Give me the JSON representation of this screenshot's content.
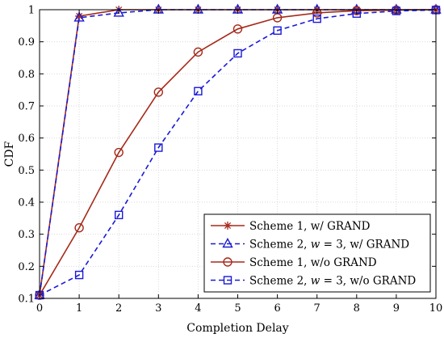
{
  "chart_data": {
    "type": "line",
    "xlabel": "Completion Delay",
    "ylabel": "CDF",
    "xlim": [
      0,
      10
    ],
    "ylim": [
      0.1,
      1
    ],
    "x_ticks": [
      "0",
      "1",
      "2",
      "3",
      "4",
      "5",
      "6",
      "7",
      "8",
      "9",
      "10"
    ],
    "y_ticks": [
      "0.1",
      "0.2",
      "0.3",
      "0.4",
      "0.5",
      "0.6",
      "0.7",
      "0.8",
      "0.9",
      "1"
    ],
    "x": [
      0,
      1,
      2,
      3,
      4,
      5,
      6,
      7,
      8,
      9,
      10
    ],
    "grid": true,
    "legend_position": "bottom-right",
    "series": [
      {
        "name": "Scheme 1, w/ GRAND",
        "color": "#a52a1a",
        "line": "solid",
        "marker": "asterisk",
        "values": [
          0.11,
          0.98,
          1.0,
          1.0,
          1.0,
          1.0,
          1.0,
          1.0,
          1.0,
          1.0,
          1.0
        ]
      },
      {
        "name": "Scheme 2, w = 3, w/ GRAND",
        "color": "#1a1ad6",
        "line": "dashed",
        "marker": "triangle",
        "values": [
          0.11,
          0.975,
          0.99,
          1.0,
          1.0,
          1.0,
          1.0,
          1.0,
          1.0,
          1.0,
          1.0
        ]
      },
      {
        "name": "Scheme 1, w/o GRAND",
        "color": "#a52a1a",
        "line": "solid",
        "marker": "circle",
        "values": [
          0.11,
          0.32,
          0.555,
          0.743,
          0.868,
          0.94,
          0.975,
          0.99,
          0.997,
          0.999,
          1.0
        ]
      },
      {
        "name": "Scheme 2, w = 3, w/o GRAND",
        "color": "#1a1ad6",
        "line": "dashed",
        "marker": "square",
        "values": [
          0.11,
          0.173,
          0.36,
          0.57,
          0.746,
          0.864,
          0.935,
          0.972,
          0.988,
          0.996,
          0.999
        ]
      }
    ],
    "legend_entries": [
      {
        "pre": "Scheme 1, w/ GRAND",
        "var": "",
        "post": ""
      },
      {
        "pre": "Scheme 2, ",
        "var": "w",
        "post": " = 3, w/ GRAND"
      },
      {
        "pre": "Scheme 1, w/o GRAND",
        "var": "",
        "post": ""
      },
      {
        "pre": "Scheme 2, ",
        "var": "w",
        "post": " = 3, w/o GRAND"
      }
    ]
  }
}
